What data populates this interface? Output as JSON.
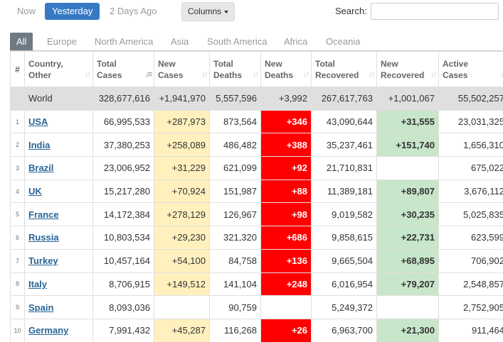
{
  "top_buttons": {
    "now": "Now",
    "yesterday": "Yesterday",
    "two_days_ago": "2 Days Ago"
  },
  "columns_button": "Columns",
  "search": {
    "label": "Search:",
    "placeholder": ""
  },
  "region_tabs": [
    "All",
    "Europe",
    "North America",
    "Asia",
    "South America",
    "Africa",
    "Oceania"
  ],
  "table": {
    "headers": {
      "index": "#",
      "country": [
        "Country,",
        "Other"
      ],
      "total_cases": [
        "Total",
        "Cases"
      ],
      "new_cases": [
        "New",
        "Cases"
      ],
      "total_deaths": [
        "Total",
        "Deaths"
      ],
      "new_deaths": [
        "New",
        "Deaths"
      ],
      "total_recovered": [
        "Total",
        "Recovered"
      ],
      "new_recovered": [
        "New",
        "Recovered"
      ],
      "active_cases": [
        "Active",
        "Cases"
      ]
    },
    "world": {
      "country": "World",
      "total_cases": "328,677,616",
      "new_cases": "+1,941,970",
      "total_deaths": "5,557,596",
      "new_deaths": "+3,992",
      "total_recovered": "267,617,763",
      "new_recovered": "+1,001,067",
      "active_cases": "55,502,257"
    },
    "rows": [
      {
        "index": "1",
        "country": "USA",
        "total_cases": "66,995,533",
        "new_cases": "+287,973",
        "total_deaths": "873,564",
        "new_deaths": "+346",
        "total_recovered": "43,090,644",
        "new_recovered": "+31,555",
        "active_cases": "23,031,325"
      },
      {
        "index": "2",
        "country": "India",
        "total_cases": "37,380,253",
        "new_cases": "+258,089",
        "total_deaths": "486,482",
        "new_deaths": "+388",
        "total_recovered": "35,237,461",
        "new_recovered": "+151,740",
        "active_cases": "1,656,310"
      },
      {
        "index": "3",
        "country": "Brazil",
        "total_cases": "23,006,952",
        "new_cases": "+31,229",
        "total_deaths": "621,099",
        "new_deaths": "+92",
        "total_recovered": "21,710,831",
        "new_recovered": "",
        "active_cases": "675,022"
      },
      {
        "index": "4",
        "country": "UK",
        "total_cases": "15,217,280",
        "new_cases": "+70,924",
        "total_deaths": "151,987",
        "new_deaths": "+88",
        "total_recovered": "11,389,181",
        "new_recovered": "+89,807",
        "active_cases": "3,676,112"
      },
      {
        "index": "5",
        "country": "France",
        "total_cases": "14,172,384",
        "new_cases": "+278,129",
        "total_deaths": "126,967",
        "new_deaths": "+98",
        "total_recovered": "9,019,582",
        "new_recovered": "+30,235",
        "active_cases": "5,025,835"
      },
      {
        "index": "6",
        "country": "Russia",
        "total_cases": "10,803,534",
        "new_cases": "+29,230",
        "total_deaths": "321,320",
        "new_deaths": "+686",
        "total_recovered": "9,858,615",
        "new_recovered": "+22,731",
        "active_cases": "623,599"
      },
      {
        "index": "7",
        "country": "Turkey",
        "total_cases": "10,457,164",
        "new_cases": "+54,100",
        "total_deaths": "84,758",
        "new_deaths": "+136",
        "total_recovered": "9,665,504",
        "new_recovered": "+68,895",
        "active_cases": "706,902"
      },
      {
        "index": "8",
        "country": "Italy",
        "total_cases": "8,706,915",
        "new_cases": "+149,512",
        "total_deaths": "141,104",
        "new_deaths": "+248",
        "total_recovered": "6,016,954",
        "new_recovered": "+79,207",
        "active_cases": "2,548,857"
      },
      {
        "index": "9",
        "country": "Spain",
        "total_cases": "8,093,036",
        "new_cases": "",
        "total_deaths": "90,759",
        "new_deaths": "",
        "total_recovered": "5,249,372",
        "new_recovered": "",
        "active_cases": "2,752,905"
      },
      {
        "index": "10",
        "country": "Germany",
        "total_cases": "7,991,432",
        "new_cases": "+45,287",
        "total_deaths": "116,268",
        "new_deaths": "+26",
        "total_recovered": "6,963,700",
        "new_recovered": "+21,300",
        "active_cases": "911,464"
      }
    ]
  },
  "colors": {
    "active_button": "#3779c2",
    "active_tab": "#6d7b87",
    "new_cases": "#fff0be",
    "new_deaths": "#ff0000",
    "new_recovered": "#c8e6c9",
    "world_row": "#dfdfdf",
    "link": "#2a6496"
  }
}
